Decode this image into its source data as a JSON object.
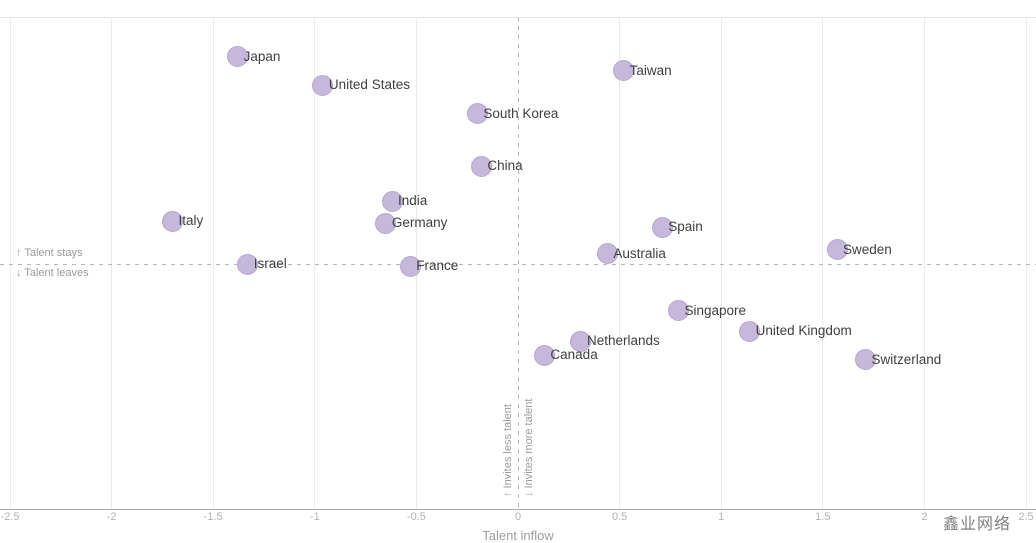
{
  "watermark": "鑫业网络",
  "chart_data": {
    "type": "scatter",
    "title": "",
    "xlabel": "Talent inflow",
    "ylabel": "",
    "xlim": [
      -2.55,
      2.55
    ],
    "ylim": [
      -1.22,
      1.22
    ],
    "x_ticks": [
      "-2.5",
      "-2",
      "-1.5",
      "-1",
      "-0.5",
      "0",
      "0.5",
      "1",
      "1.5",
      "2",
      "2.5"
    ],
    "y_ticks": [],
    "grid": "vertical gridlines at each 0.5 x-tick, no horizontal gridlines",
    "legend_position": "none",
    "reference_lines": [
      {
        "axis": "y",
        "value": 0,
        "style": "dashed"
      },
      {
        "axis": "x",
        "value": 0,
        "style": "dashed"
      }
    ],
    "annotations": {
      "y_positive": "↑ Talent stays",
      "y_negative": "↓ Talent leaves",
      "x_negative": "↑ Invites less talent",
      "x_positive": "↓ Invites more talent"
    },
    "points": [
      {
        "name": "Italy",
        "x": -1.7,
        "y": 0.21
      },
      {
        "name": "Japan",
        "x": -1.38,
        "y": 1.02
      },
      {
        "name": "Israel",
        "x": -1.33,
        "y": 0.0
      },
      {
        "name": "United States",
        "x": -0.96,
        "y": 0.88
      },
      {
        "name": "Germany",
        "x": -0.65,
        "y": 0.2
      },
      {
        "name": "India",
        "x": -0.62,
        "y": 0.31
      },
      {
        "name": "France",
        "x": -0.53,
        "y": -0.01
      },
      {
        "name": "South Korea",
        "x": -0.2,
        "y": 0.74
      },
      {
        "name": "China",
        "x": -0.18,
        "y": 0.48
      },
      {
        "name": "Canada",
        "x": 0.13,
        "y": -0.45
      },
      {
        "name": "Netherlands",
        "x": 0.31,
        "y": -0.38
      },
      {
        "name": "Australia",
        "x": 0.44,
        "y": 0.05
      },
      {
        "name": "Taiwan",
        "x": 0.52,
        "y": 0.95
      },
      {
        "name": "Spain",
        "x": 0.71,
        "y": 0.18
      },
      {
        "name": "Singapore",
        "x": 0.79,
        "y": -0.23
      },
      {
        "name": "United Kingdom",
        "x": 1.14,
        "y": -0.33
      },
      {
        "name": "Sweden",
        "x": 1.57,
        "y": 0.07
      },
      {
        "name": "Switzerland",
        "x": 1.71,
        "y": -0.47
      }
    ],
    "colors": {
      "point_fill": "#c6b8db",
      "point_border": "#b6a6cf",
      "label_text": "#3f3f3f",
      "tick_text": "#b2b2b2",
      "annotation_text": "#9b9b9b",
      "gridline": "#eaeaea",
      "axis_line": "#ababab",
      "reference_line": "#b5b5b5",
      "watermark_text": "#7f7f7f"
    }
  }
}
